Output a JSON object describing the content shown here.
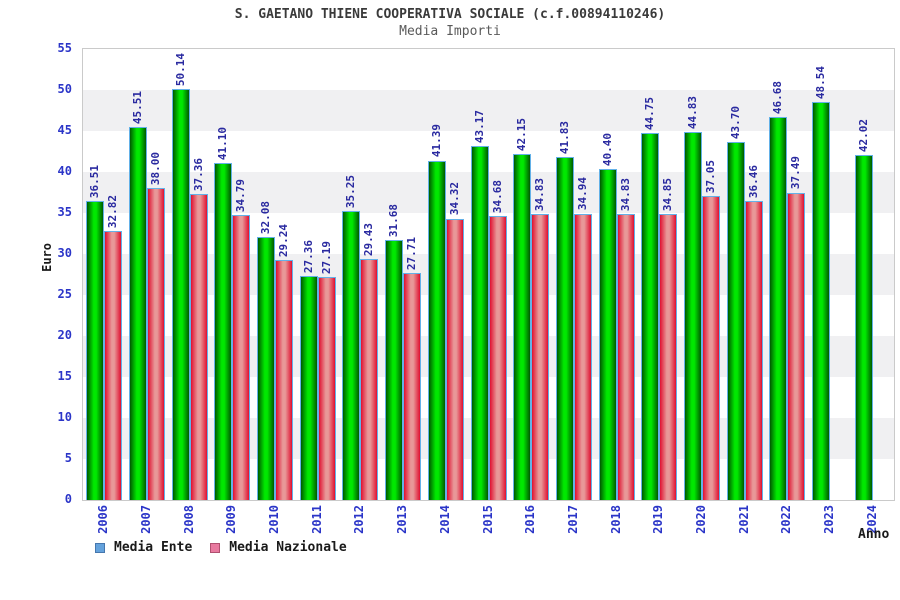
{
  "header": {
    "title": "S. GAETANO THIENE COOPERATIVA SOCIALE (c.f.00894110246)",
    "subtitle": "Media Importi"
  },
  "chart_data": {
    "type": "bar",
    "title": "S. GAETANO THIENE COOPERATIVA SOCIALE (c.f.00894110246)",
    "subtitle": "Media Importi",
    "xlabel": "Anno",
    "ylabel": "Euro",
    "ylim": [
      0,
      55
    ],
    "yticks": [
      0,
      5,
      10,
      15,
      20,
      25,
      30,
      35,
      40,
      45,
      50,
      55
    ],
    "grid": "alternating-horizontal-bands",
    "legend_position": "bottom-left",
    "categories": [
      "2006",
      "2007",
      "2008",
      "2009",
      "2010",
      "2011",
      "2012",
      "2013",
      "2014",
      "2015",
      "2016",
      "2017",
      "2018",
      "2019",
      "2020",
      "2021",
      "2022",
      "2023",
      "2024"
    ],
    "series": [
      {
        "name": "Media Ente",
        "values": [
          36.51,
          45.51,
          50.14,
          41.1,
          32.08,
          27.36,
          35.25,
          31.68,
          41.39,
          43.17,
          42.15,
          41.83,
          40.4,
          44.75,
          44.83,
          43.7,
          46.68,
          48.54,
          42.02
        ]
      },
      {
        "name": "Media Nazionale",
        "values": [
          32.82,
          38.0,
          37.36,
          34.79,
          29.24,
          27.19,
          29.43,
          27.71,
          34.32,
          34.68,
          34.83,
          34.94,
          34.83,
          34.85,
          37.05,
          36.46,
          37.49,
          null,
          null
        ]
      }
    ]
  },
  "legend": {
    "items": [
      {
        "label": "Media Ente"
      },
      {
        "label": "Media Nazionale"
      }
    ]
  },
  "colors": {
    "title": "#3a3a3a",
    "subtitle": "#5a5a5a",
    "band_gray": "#f0f0f2",
    "plot_border": "#cacaca",
    "bar_green_edge": "#005a00",
    "bar_green_mid": "#00e800",
    "bar_red_edge": "#e01030",
    "bar_red_mid": "#e89898",
    "bar_outline": "#63b1e8",
    "tick_label_blue": "#2b35c8",
    "value_label_navy": "#2a2aa0",
    "legend_ente_fill": "#64a2dc",
    "legend_ente_border": "#4677ae",
    "legend_nazionale_fill": "#e8799f",
    "legend_nazionale_border": "#b05070"
  }
}
